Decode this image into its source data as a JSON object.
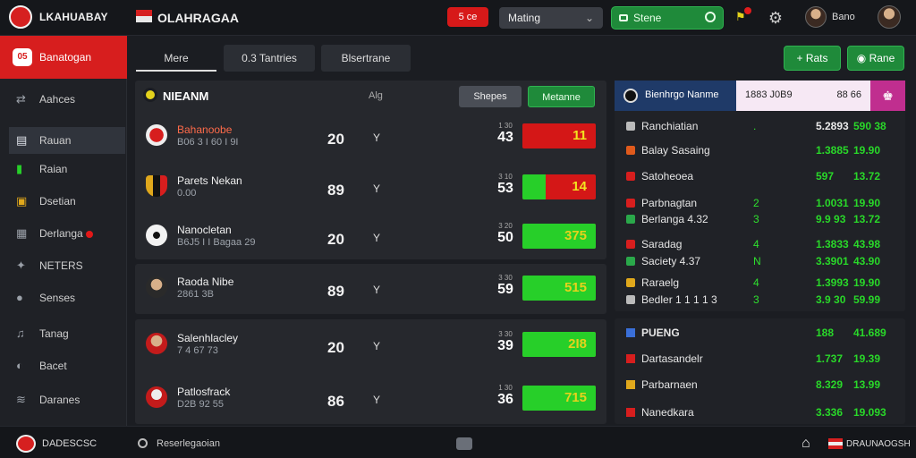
{
  "header": {
    "brand": "LKAHUABAY",
    "app_title": "OLAHRAGAA",
    "red_button": "5 ce",
    "select_value": "Mating",
    "search_text": "Stene",
    "user_name": "Bano"
  },
  "sidebar": {
    "head_icon_text": "05",
    "head_label": "Banatogan",
    "items": [
      {
        "icon": "arrows-icon",
        "label": "Aahces"
      },
      {
        "icon": "chart-icon",
        "label": "Rauan"
      },
      {
        "icon": "bars-icon",
        "label": "Raian"
      },
      {
        "icon": "flag-icon",
        "label": "Dsetian"
      },
      {
        "icon": "calendar-icon",
        "label": "Derlanga"
      },
      {
        "icon": "tag-icon",
        "label": "NETERS"
      },
      {
        "icon": "circle-icon",
        "label": "Senses"
      },
      {
        "icon": "bell-icon",
        "label": "Tanag"
      },
      {
        "icon": "gear-icon",
        "label": "Bacet"
      },
      {
        "icon": "layers-icon",
        "label": "Daranes"
      }
    ]
  },
  "tabs": [
    "Mere",
    "0.3 Tantries",
    "Blsertrane"
  ],
  "top_actions": {
    "add_label": "Rats",
    "notify_label": "Rane"
  },
  "matches": {
    "title": "NIEANM",
    "column_label": "Alg",
    "btn_left": "Shepes",
    "btn_right": "Metanne",
    "rows": [
      {
        "name": "Bahanoobe",
        "sub": "B06 3 I 60 I 9I",
        "score": "20",
        "mark": "Y",
        "top": "1 30",
        "num": "43",
        "green_fraction": 0.0,
        "bar_value": "11",
        "name_red": true
      },
      {
        "name": "Parets Nekan",
        "sub": "0.00",
        "score": "89",
        "mark": "Y",
        "top": "3 10",
        "num": "53",
        "green_fraction": 0.32,
        "bar_value": "14",
        "name_red": false
      },
      {
        "name": "Nanocletan",
        "sub": "B6J5 I I Bagaa 29",
        "score": "20",
        "mark": "Y",
        "top": "3 20",
        "num": "50",
        "green_fraction": 1.0,
        "bar_value": "375",
        "name_red": false
      },
      {
        "name": "Raoda Nibe",
        "sub": "2861 3B",
        "score": "89",
        "mark": "Y",
        "top": "3 30",
        "num": "59",
        "green_fraction": 1.0,
        "bar_value": "515",
        "name_red": false
      },
      {
        "name": "Salenhlacley",
        "sub": "7 4 67 73",
        "score": "20",
        "mark": "Y",
        "top": "3 30",
        "num": "39",
        "green_fraction": 1.0,
        "bar_value": "2I8",
        "name_red": false
      },
      {
        "name": "Patlosfrack",
        "sub": "D2B 92 55",
        "score": "86",
        "mark": "Y",
        "top": "1 30",
        "num": "36",
        "green_fraction": 1.0,
        "bar_value": "715",
        "name_red": false
      }
    ]
  },
  "odds": {
    "header_title": "Bienhrgo Nanme",
    "header_box_left": "1883 J0B9",
    "header_box_right": "88 66",
    "group1": [
      {
        "name": "Ranchiatian",
        "mid": ".",
        "o1": "5.2893",
        "o2": "590 38",
        "o1_white": true,
        "o2_white": false
      },
      {
        "name": "Balay Sasaing",
        "mid": "",
        "o1": "1.3885",
        "o2": "19.90",
        "o1_white": false,
        "o2_white": false
      },
      {
        "name": "Satoheoea",
        "mid": "",
        "o1": "597",
        "o2": "13.72",
        "o1_white": false,
        "o2_white": false
      },
      {
        "name": "Parbnagtan",
        "mid": "2",
        "o1": "1.0031",
        "o2": "19.90",
        "o1_white": false,
        "o2_white": false
      },
      {
        "name": "Berlanga 4.32",
        "mid": "3",
        "o1": "9.9 93",
        "o2": "13.72",
        "o1_white": false,
        "o2_white": false
      },
      {
        "name": "Saradag",
        "mid": "4",
        "o1": "1.3833",
        "o2": "43.98",
        "o1_white": false,
        "o2_white": false
      },
      {
        "name": "Saciety 4.37",
        "mid": "N",
        "o1": "3.3901",
        "o2": "43.90",
        "o1_white": false,
        "o2_white": false
      },
      {
        "name": "Raraelg",
        "mid": "4",
        "o1": "1.3993",
        "o2": "19.90",
        "o1_white": false,
        "o2_white": false
      },
      {
        "name": "Bedler 1 1 1 1 3",
        "mid": "3",
        "o1": "3.9 30",
        "o2": "59.99",
        "o1_white": false,
        "o2_white": false
      }
    ],
    "group2_title": "PUENG",
    "group2_title_o1": "188",
    "group2_title_o2": "41.689",
    "group2": [
      {
        "name": "Dartasandelr",
        "o1": "1.737",
        "o2": "19.39"
      },
      {
        "name": "Parbarnaen",
        "o1": "8.329",
        "o2": "13.99"
      },
      {
        "name": "Nanedkara",
        "o1": "3.336",
        "o2": "19.093"
      }
    ]
  },
  "bottombar": {
    "brand": "DADESCSC",
    "search_label": "Reserlegaoian",
    "right_label": "DRAUNAOGSH"
  },
  "colors": {
    "accent_red": "#d71e1e",
    "accent_green": "#27cf29",
    "bar_red": "#d41717",
    "odds_header": "#1f3a68",
    "pink": "#c02e8f"
  }
}
